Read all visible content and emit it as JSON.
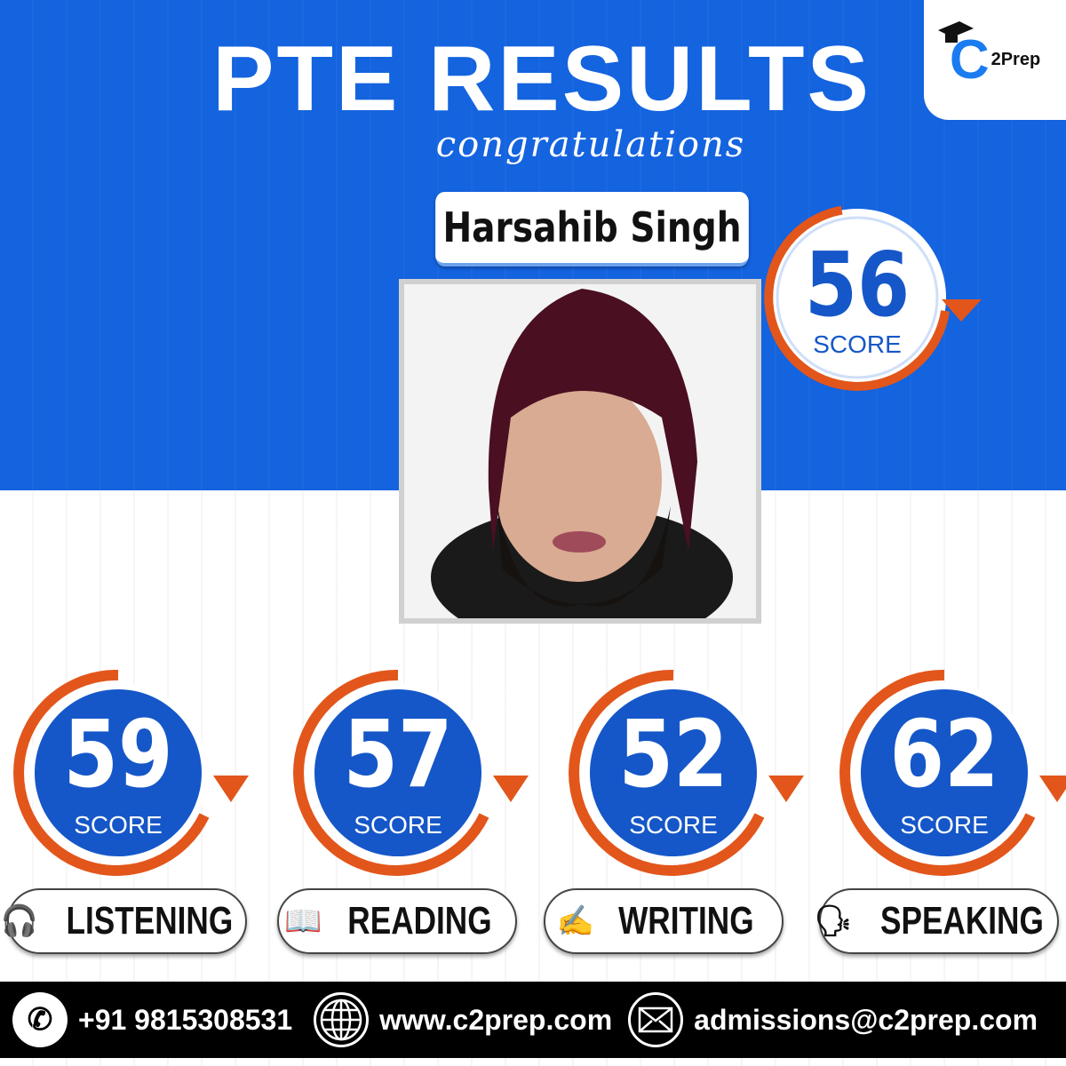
{
  "header": {
    "title": "PTE RESULTS",
    "subtitle": "congratulations",
    "logo_text": "2Prep",
    "logo_letter": "C"
  },
  "student": {
    "name": "Harsahib Singh"
  },
  "overall": {
    "score": "56",
    "label": "SCORE"
  },
  "modules": [
    {
      "name": "LISTENING",
      "score": "59",
      "label": "SCORE",
      "icon": "headphones-icon"
    },
    {
      "name": "READING",
      "score": "57",
      "label": "SCORE",
      "icon": "reading-icon"
    },
    {
      "name": "WRITING",
      "score": "52",
      "label": "SCORE",
      "icon": "writing-icon"
    },
    {
      "name": "SPEAKING",
      "score": "62",
      "label": "SCORE",
      "icon": "speaking-icon"
    }
  ],
  "footer": {
    "phone": "+91 9815308531",
    "website": "www.c2prep.com",
    "email": "admissions@c2prep.com"
  },
  "colors": {
    "blue": "#1463df",
    "orange": "#e2561b",
    "disc": "#1557c8"
  }
}
